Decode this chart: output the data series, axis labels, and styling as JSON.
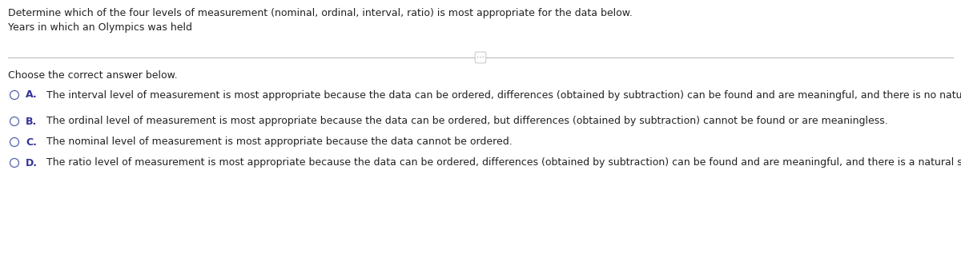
{
  "background_color": "#ffffff",
  "line1": "Determine which of the four levels of measurement (nominal, ordinal, interval, ratio) is most appropriate for the data below.",
  "line2": "Years in which an Olympics was held",
  "choose_text": "Choose the correct answer below.",
  "options": [
    {
      "label": "A.",
      "text": "The interval level of measurement is most appropriate because the data can be ordered, differences (obtained by subtraction) can be found and are meaningful, and there is no natural starting zero point."
    },
    {
      "label": "B.",
      "text": "The ordinal level of measurement is most appropriate because the data can be ordered, but differences (obtained by subtraction) cannot be found or are meaningless."
    },
    {
      "label": "C.",
      "text": "The nominal level of measurement is most appropriate because the data cannot be ordered."
    },
    {
      "label": "D.",
      "text": "The ratio level of measurement is most appropriate because the data can be ordered, differences (obtained by subtraction) can be found and are meaningful, and there is a natural starting point."
    }
  ],
  "font_size_main": 9.0,
  "font_size_options": 9.0,
  "text_color": "#222222",
  "label_color": "#333399",
  "circle_color": "#5566aa",
  "divider_color": "#bbbbbb",
  "dots_color": "#888888"
}
